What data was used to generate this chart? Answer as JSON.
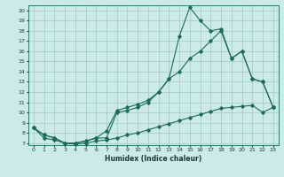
{
  "xlabel": "Humidex (Indice chaleur)",
  "bg_color": "#cceaea",
  "grid_color": "#aacccc",
  "line_color": "#1a6b5a",
  "xlim": [
    -0.5,
    23.5
  ],
  "ylim": [
    6.8,
    20.5
  ],
  "xticks": [
    0,
    1,
    2,
    3,
    4,
    5,
    6,
    7,
    8,
    9,
    10,
    11,
    12,
    13,
    14,
    15,
    16,
    17,
    18,
    19,
    20,
    21,
    22,
    23
  ],
  "yticks": [
    7,
    8,
    9,
    10,
    11,
    12,
    13,
    14,
    15,
    16,
    17,
    18,
    19,
    20
  ],
  "line1_x": [
    0,
    1,
    2,
    3,
    4,
    5,
    6,
    7,
    8,
    9,
    10,
    11,
    12,
    13,
    14,
    15,
    16,
    17,
    18,
    19,
    20,
    21,
    22,
    23
  ],
  "line1_y": [
    8.5,
    7.8,
    7.5,
    7.0,
    7.0,
    7.2,
    7.5,
    7.5,
    10.0,
    10.2,
    10.5,
    11.0,
    12.0,
    13.3,
    17.5,
    20.3,
    19.0,
    18.0,
    18.2,
    15.3,
    16.0,
    13.3,
    13.0,
    10.5
  ],
  "line2_x": [
    0,
    1,
    2,
    3,
    4,
    5,
    6,
    7,
    8,
    9,
    10,
    11,
    12,
    13,
    14,
    15,
    16,
    17,
    18,
    19,
    20,
    21,
    22,
    23
  ],
  "line2_y": [
    8.5,
    7.8,
    7.5,
    7.0,
    7.0,
    7.2,
    7.5,
    8.2,
    10.2,
    10.5,
    10.8,
    11.2,
    12.0,
    13.3,
    14.0,
    15.3,
    16.0,
    17.0,
    18.0,
    15.3,
    16.0,
    13.3,
    13.0,
    10.5
  ],
  "line3_x": [
    0,
    1,
    2,
    3,
    4,
    5,
    6,
    7,
    8,
    9,
    10,
    11,
    12,
    13,
    14,
    15,
    16,
    17,
    18,
    19,
    20,
    21,
    22,
    23
  ],
  "line3_y": [
    8.5,
    7.5,
    7.3,
    7.0,
    6.9,
    7.0,
    7.2,
    7.3,
    7.5,
    7.8,
    8.0,
    8.3,
    8.6,
    8.9,
    9.2,
    9.5,
    9.8,
    10.1,
    10.4,
    10.5,
    10.6,
    10.7,
    10.0,
    10.5
  ]
}
